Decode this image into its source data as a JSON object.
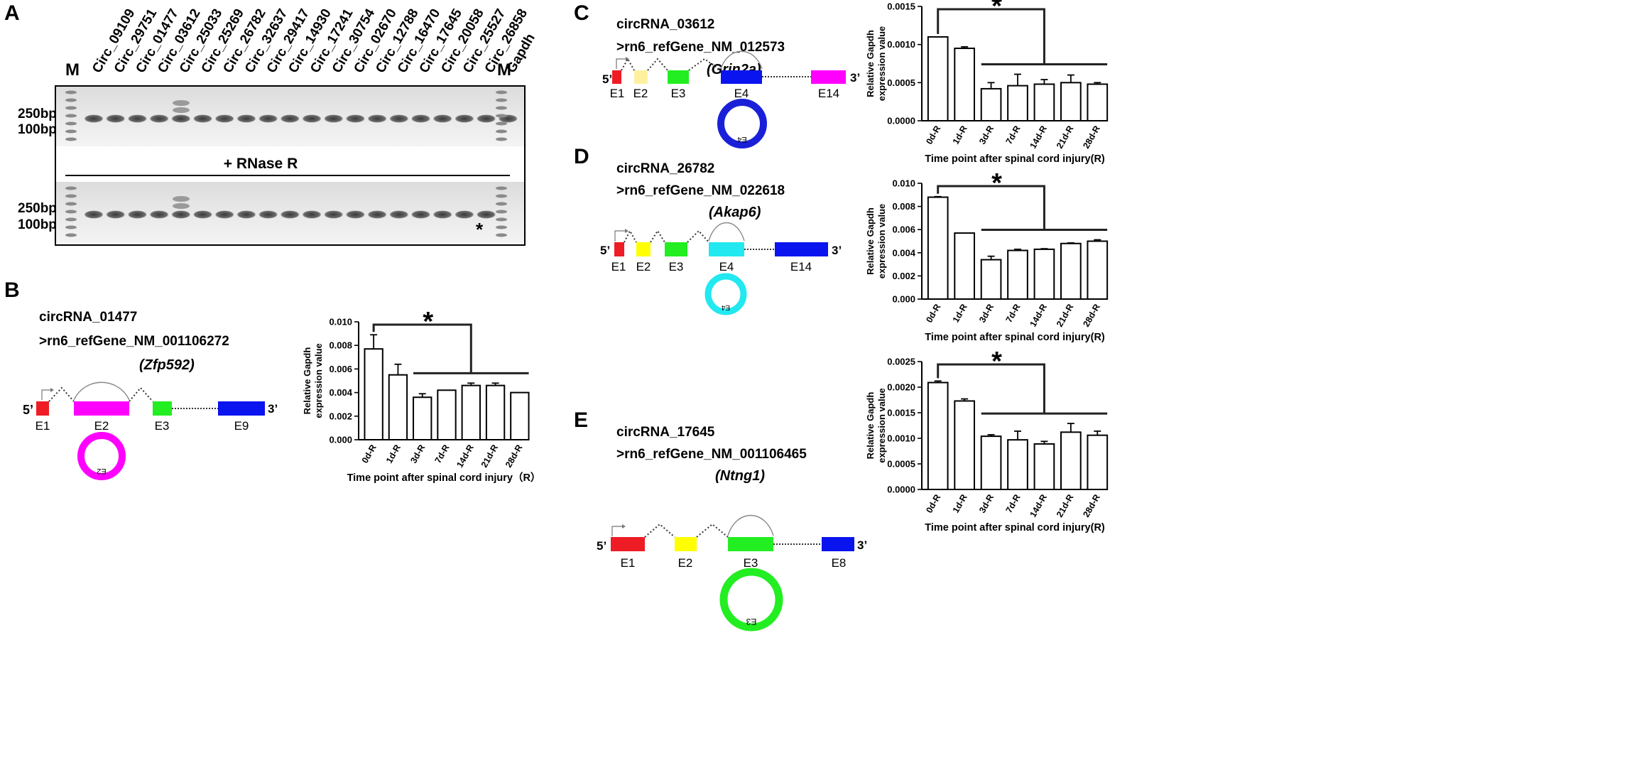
{
  "panel_letters": {
    "a": "A",
    "b": "B",
    "c": "C",
    "d": "D",
    "e": "E"
  },
  "gel": {
    "lanes": [
      "Circ_09109",
      "Circ_29751",
      "Circ_01477",
      "Circ_03612",
      "Circ_25033",
      "Circ_25269",
      "Circ_26782",
      "Circ_32637",
      "Circ_29417",
      "Circ_14930",
      "Circ_17241",
      "Circ_30754",
      "Circ_02670",
      "Circ_12788",
      "Circ_16470",
      "Circ_17645",
      "Circ_20058",
      "Circ_25527",
      "Circ_26858",
      "Gapdh"
    ],
    "marker_label": "M",
    "size_top": "250bp",
    "size_bottom": "100bp",
    "treatment_label": "+ RNase R",
    "asterisk": "*"
  },
  "structures": {
    "b": {
      "name": "circRNA_01477",
      "ref": ">rn6_refGene_NM_001106272",
      "gene": "(Zfp592)",
      "exons": [
        "E1",
        "E2",
        "E3",
        "E9"
      ],
      "circle_label": "E2",
      "five": "5’",
      "three": "3’"
    },
    "c": {
      "name": "circRNA_03612",
      "ref": ">rn6_refGene_NM_012573",
      "gene": "(Grin2a)",
      "exons": [
        "E1",
        "E2",
        "E3",
        "E4",
        "E14"
      ],
      "circle_label": "E4",
      "five": "5’",
      "three": "3’"
    },
    "d": {
      "name": "circRNA_26782",
      "ref": ">rn6_refGene_NM_022618",
      "gene": "(Akap6)",
      "exons": [
        "E1",
        "E2",
        "E3",
        "E4",
        "E14"
      ],
      "circle_label": "E4",
      "five": "5’",
      "three": "3’"
    },
    "e": {
      "name": "circRNA_17645",
      "ref": ">rn6_refGene_NM_001106465",
      "gene": "(Ntng1)",
      "exons": [
        "E1",
        "E2",
        "E3",
        "E8"
      ],
      "circle_label": "E3",
      "five": "5’",
      "three": "3’"
    }
  },
  "colors": {
    "red": "#ee1c25",
    "magenta": "#ff00ff",
    "green": "#22ee22",
    "blue": "#0a14ee",
    "yellow": "#ffff00",
    "pale_yellow": "#fff0a0",
    "cyan": "#22e8f0",
    "blue_circle": "#1a20d8"
  },
  "chart_data": [
    {
      "id": "B",
      "type": "bar",
      "categories": [
        "0d-R",
        "1d-R",
        "3d-R",
        "7d-R",
        "14d-R",
        "21d-R",
        "28d-R"
      ],
      "values": [
        0.0077,
        0.0055,
        0.0036,
        0.0042,
        0.0046,
        0.0046,
        0.004
      ],
      "errors": [
        0.0012,
        0.0009,
        0.0003,
        0.0,
        0.0002,
        0.0002,
        0.0
      ],
      "ylim": [
        0,
        0.01
      ],
      "yticks": [
        "0.000",
        "0.002",
        "0.004",
        "0.006",
        "0.008",
        "0.010"
      ],
      "ylabel_line1": "Relative Gapdh",
      "ylabel_line2": "expression value",
      "xlabel": "Time point after spinal cord injury（R）",
      "significance": "*"
    },
    {
      "id": "C",
      "type": "bar",
      "categories": [
        "0d-R",
        "1d-R",
        "3d-R",
        "7d-R",
        "14d-R",
        "21d-R",
        "28d-R"
      ],
      "values": [
        0.0011,
        0.00095,
        0.00042,
        0.00046,
        0.00048,
        0.0005,
        0.00048
      ],
      "errors": [
        0.0,
        2e-05,
        8e-05,
        0.00015,
        6e-05,
        0.0001,
        2e-05
      ],
      "ylim": [
        0,
        0.0015
      ],
      "yticks": [
        "0.0000",
        "0.0005",
        "0.0010",
        "0.0015"
      ],
      "ylabel_line1": "Relative Gapdh",
      "ylabel_line2": "expression value",
      "xlabel": "Time point after spinal cord injury(R)",
      "significance": "*"
    },
    {
      "id": "D",
      "type": "bar",
      "categories": [
        "0d-R",
        "1d-R",
        "3d-R",
        "7d-R",
        "14d-R",
        "21d-R",
        "28d-R"
      ],
      "values": [
        0.0088,
        0.0057,
        0.0034,
        0.0042,
        0.0043,
        0.0048,
        0.005
      ],
      "errors": [
        5e-05,
        0.0,
        0.0003,
        0.0001,
        5e-05,
        5e-05,
        0.00012
      ],
      "ylim": [
        0,
        0.01
      ],
      "yticks": [
        "0.000",
        "0.002",
        "0.004",
        "0.006",
        "0.008",
        "0.010"
      ],
      "ylabel_line1": "Relative Gapdh",
      "ylabel_line2": "expression value",
      "xlabel": "Time point after spinal cord injury(R)",
      "significance": "*"
    },
    {
      "id": "E",
      "type": "bar",
      "categories": [
        "0d-R",
        "1d-R",
        "3d-R",
        "7d-R",
        "14d-R",
        "21d-R",
        "28d-R"
      ],
      "values": [
        0.00209,
        0.00173,
        0.00104,
        0.00097,
        0.00089,
        0.00112,
        0.00106
      ],
      "errors": [
        3e-05,
        4e-05,
        3e-05,
        0.00017,
        5e-05,
        0.00017,
        8e-05
      ],
      "ylim": [
        0,
        0.0025
      ],
      "yticks": [
        "0.0000",
        "0.0005",
        "0.0010",
        "0.0015",
        "0.0020",
        "0.0025"
      ],
      "ylabel_line1": "Relative Gapdh",
      "ylabel_line2": "expression value",
      "xlabel": "Time point after spinal cord injury(R)",
      "significance": "*"
    }
  ]
}
